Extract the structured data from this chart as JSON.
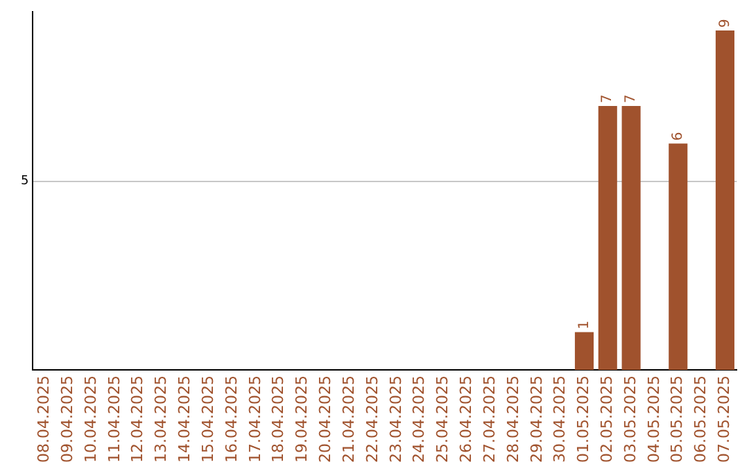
{
  "chart_data": {
    "type": "bar",
    "categories": [
      "08.04.2025",
      "09.04.2025",
      "10.04.2025",
      "11.04.2025",
      "12.04.2025",
      "13.04.2025",
      "14.04.2025",
      "15.04.2025",
      "16.04.2025",
      "17.04.2025",
      "18.04.2025",
      "19.04.2025",
      "20.04.2025",
      "21.04.2025",
      "22.04.2025",
      "23.04.2025",
      "24.04.2025",
      "25.04.2025",
      "26.04.2025",
      "27.04.2025",
      "28.04.2025",
      "29.04.2025",
      "30.04.2025",
      "01.05.2025",
      "02.05.2025",
      "03.05.2025",
      "04.05.2025",
      "05.05.2025",
      "06.05.2025",
      "07.05.2025"
    ],
    "values": [
      null,
      null,
      null,
      null,
      null,
      null,
      null,
      null,
      null,
      null,
      null,
      null,
      null,
      null,
      null,
      null,
      null,
      null,
      null,
      null,
      null,
      null,
      null,
      1,
      7,
      7,
      null,
      6,
      null,
      9
    ],
    "data_labels": true,
    "color": "#a0522d",
    "ylim": [
      0,
      9.5
    ],
    "yticks": [
      5
    ],
    "grid": "y",
    "legend": false
  }
}
